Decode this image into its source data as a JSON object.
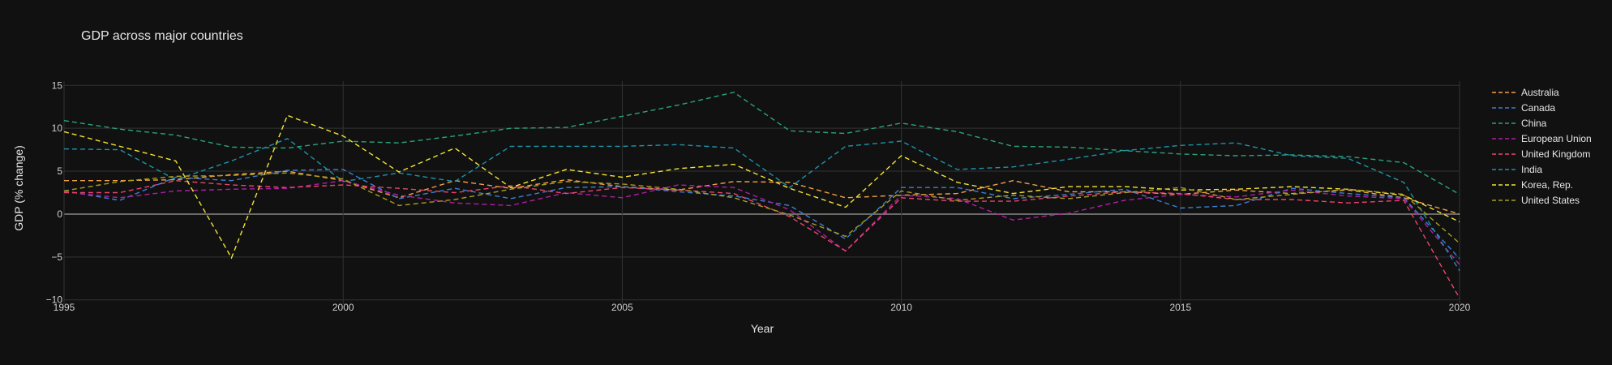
{
  "chart_data": {
    "type": "line",
    "title": "GDP across major countries",
    "xlabel": "Year",
    "ylabel": "GDP (% change)",
    "xlim": [
      1995,
      2020
    ],
    "ylim": [
      -10.5,
      15.5
    ],
    "xticks": [
      1995,
      2000,
      2005,
      2010,
      2015,
      2020
    ],
    "yticks": [
      -10,
      -5,
      0,
      5,
      10,
      15
    ],
    "grid": true,
    "legend_position": "right",
    "line_style": "dashed",
    "x": [
      1995,
      1996,
      1997,
      1998,
      1999,
      2000,
      2001,
      2002,
      2003,
      2004,
      2005,
      2006,
      2007,
      2008,
      2009,
      2010,
      2011,
      2012,
      2013,
      2014,
      2015,
      2016,
      2017,
      2018,
      2019,
      2020
    ],
    "series": [
      {
        "name": "Australia",
        "color": "#f2a04a",
        "values": [
          3.9,
          3.9,
          4.0,
          4.6,
          5.0,
          3.9,
          1.9,
          3.9,
          3.0,
          4.0,
          3.2,
          2.8,
          3.8,
          3.7,
          1.9,
          2.2,
          2.4,
          3.9,
          2.6,
          2.6,
          2.3,
          2.8,
          2.4,
          2.8,
          1.9,
          0.0
        ]
      },
      {
        "name": "Canada",
        "color": "#3c7fd6",
        "values": [
          2.7,
          1.6,
          4.3,
          3.9,
          5.1,
          5.2,
          1.8,
          3.0,
          1.8,
          3.1,
          3.2,
          2.6,
          2.1,
          1.0,
          -2.9,
          3.1,
          3.1,
          1.8,
          2.3,
          2.9,
          0.7,
          1.0,
          3.0,
          2.4,
          1.9,
          -5.2
        ]
      },
      {
        "name": "China",
        "color": "#2ba37a",
        "values": [
          10.9,
          9.9,
          9.2,
          7.8,
          7.7,
          8.5,
          8.3,
          9.1,
          10.0,
          10.1,
          11.4,
          12.7,
          14.2,
          9.7,
          9.4,
          10.6,
          9.6,
          7.9,
          7.8,
          7.4,
          7.0,
          6.8,
          6.9,
          6.7,
          6.0,
          2.3
        ]
      },
      {
        "name": "European Union",
        "color": "#b01ea6",
        "values": [
          2.6,
          1.9,
          2.7,
          2.9,
          3.0,
          3.9,
          2.2,
          1.3,
          1.0,
          2.5,
          1.9,
          3.4,
          3.1,
          0.5,
          -4.3,
          2.2,
          1.8,
          -0.7,
          0.1,
          1.6,
          2.3,
          2.0,
          2.8,
          2.1,
          1.8,
          -5.9
        ]
      },
      {
        "name": "United Kingdom",
        "color": "#e8456b",
        "values": [
          2.5,
          2.5,
          3.9,
          3.4,
          3.1,
          3.4,
          3.0,
          2.5,
          3.3,
          2.4,
          3.1,
          2.8,
          2.4,
          -0.3,
          -4.3,
          1.9,
          1.5,
          1.5,
          2.1,
          2.6,
          2.4,
          1.7,
          1.7,
          1.3,
          1.6,
          -9.8
        ]
      },
      {
        "name": "India",
        "color": "#1d93a8",
        "values": [
          7.6,
          7.5,
          4.0,
          6.2,
          8.8,
          3.8,
          4.8,
          3.8,
          7.9,
          7.9,
          7.9,
          8.1,
          7.7,
          3.1,
          7.9,
          8.5,
          5.2,
          5.5,
          6.4,
          7.4,
          8.0,
          8.3,
          6.8,
          6.5,
          3.7,
          -6.6
        ]
      },
      {
        "name": "Korea, Rep.",
        "color": "#f2e434",
        "values": [
          9.6,
          7.9,
          6.2,
          -5.1,
          11.5,
          9.1,
          4.9,
          7.7,
          3.1,
          5.2,
          4.3,
          5.3,
          5.8,
          3.0,
          0.8,
          6.8,
          3.7,
          2.4,
          3.2,
          3.2,
          2.8,
          2.9,
          3.2,
          2.9,
          2.2,
          -0.9
        ]
      },
      {
        "name": "United States",
        "color": "#a89d1e",
        "values": [
          2.7,
          3.8,
          4.4,
          4.5,
          4.8,
          4.1,
          1.0,
          1.7,
          2.9,
          3.8,
          3.5,
          2.9,
          1.9,
          -0.1,
          -2.6,
          2.7,
          1.6,
          2.2,
          1.8,
          2.5,
          3.1,
          1.7,
          2.3,
          2.9,
          2.3,
          -3.4
        ]
      }
    ]
  }
}
